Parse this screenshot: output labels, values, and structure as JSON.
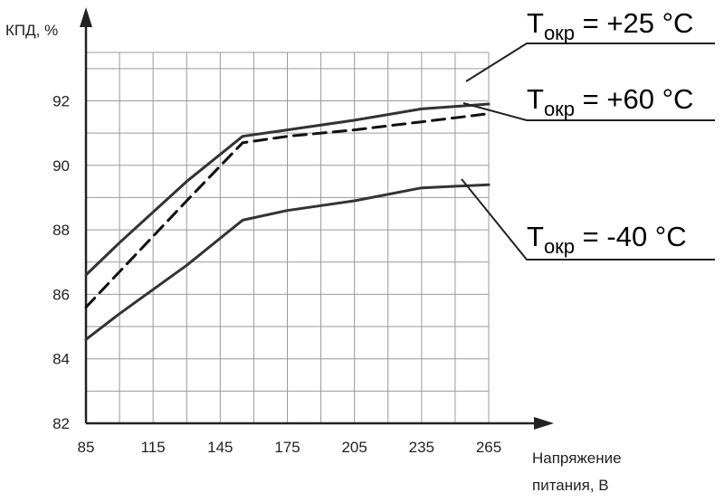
{
  "chart_data": {
    "type": "line",
    "title": "",
    "ylabel": "КПД, %",
    "xlabel_lines": [
      "Напряжение",
      "питания, В"
    ],
    "xlim": [
      85,
      265
    ],
    "ylim": [
      82,
      93.5
    ],
    "x_tick_labels": [
      "85",
      "115",
      "145",
      "175",
      "205",
      "235",
      "265"
    ],
    "y_tick_labels": [
      "82",
      "84",
      "86",
      "88",
      "90",
      "92"
    ],
    "x_ticks": [
      85,
      115,
      145,
      175,
      205,
      235,
      265
    ],
    "y_ticks": [
      82,
      84,
      86,
      88,
      90,
      92
    ],
    "grid": true,
    "legend_placement": "right",
    "series": [
      {
        "name": "Tокр = +25 °C",
        "name_main": "T",
        "name_sub": "окр",
        "name_value": " = +25 °C",
        "style": "solid",
        "color": "#333333",
        "points": [
          [
            85,
            86.6
          ],
          [
            100,
            87.6
          ],
          [
            130,
            89.5
          ],
          [
            155,
            90.9
          ],
          [
            175,
            91.1
          ],
          [
            205,
            91.4
          ],
          [
            235,
            91.75
          ],
          [
            265,
            91.9
          ]
        ]
      },
      {
        "name": "Tокр = +60 °C",
        "name_main": "T",
        "name_sub": "окр",
        "name_value": " = +60 °C",
        "style": "dashed",
        "color": "#111111",
        "points": [
          [
            85,
            85.6
          ],
          [
            100,
            86.7
          ],
          [
            130,
            88.9
          ],
          [
            155,
            90.7
          ],
          [
            175,
            90.9
          ],
          [
            205,
            91.1
          ],
          [
            235,
            91.35
          ],
          [
            265,
            91.6
          ]
        ]
      },
      {
        "name": "Tокр = -40 °C",
        "name_main": "T",
        "name_sub": "окр",
        "name_value": " = -40 °C",
        "style": "solid",
        "color": "#333333",
        "points": [
          [
            85,
            84.6
          ],
          [
            100,
            85.4
          ],
          [
            130,
            86.9
          ],
          [
            155,
            88.3
          ],
          [
            175,
            88.6
          ],
          [
            205,
            88.9
          ],
          [
            235,
            89.3
          ],
          [
            265,
            89.4
          ]
        ]
      }
    ]
  }
}
